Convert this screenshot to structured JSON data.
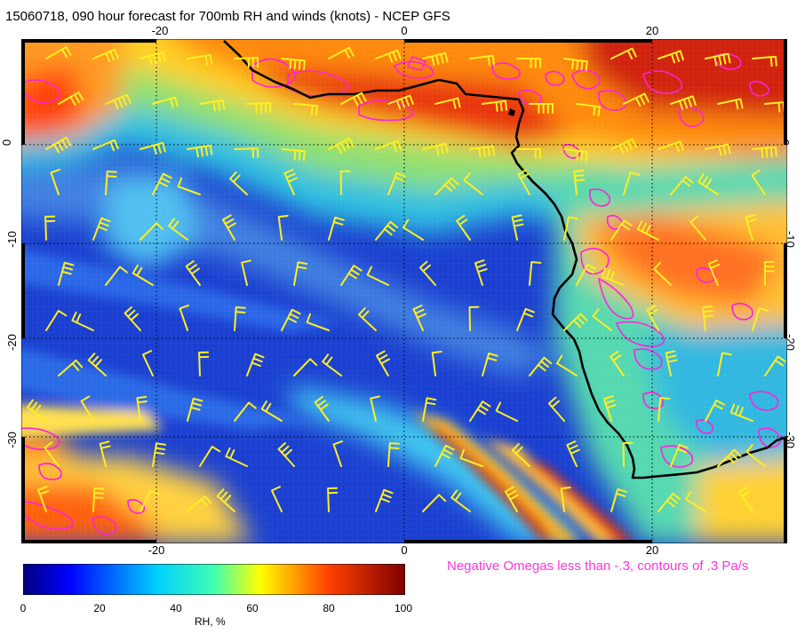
{
  "title": "15060718, 090 hour forecast for 700mb RH and winds (knots) - NCEP GFS",
  "axes": {
    "top_ticks": [
      "-20",
      "0",
      "20"
    ],
    "bottom_ticks": [
      "-20",
      "0",
      "20"
    ],
    "left_ticks": [
      "0",
      "-10",
      "-20",
      "-30"
    ],
    "right_ticks": [
      "0",
      "-10",
      "-20",
      "-30"
    ]
  },
  "colorbar": {
    "label": "RH, %",
    "ticks": [
      "0",
      "20",
      "40",
      "60",
      "80",
      "100"
    ],
    "range": [
      0,
      100
    ],
    "colormap": "jet"
  },
  "annotation": "Negative Omegas less than -.3, contours of .3 Pa/s",
  "colors": {
    "coastline": "#000000",
    "wind_barbs": "#ffee22",
    "omega_contours": "#ff22dd",
    "annotation": "#ff33dd"
  }
}
